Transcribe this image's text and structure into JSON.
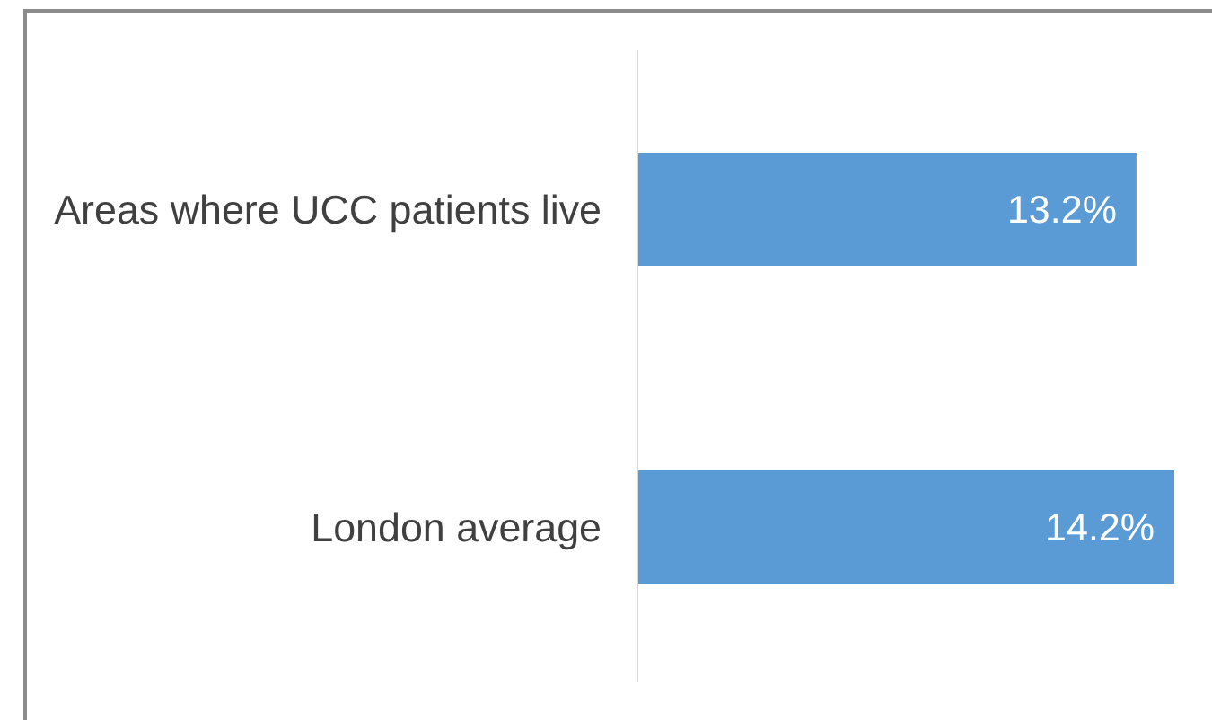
{
  "chart_data": {
    "type": "bar",
    "orientation": "horizontal",
    "categories": [
      "Areas where UCC patients live",
      "London average"
    ],
    "values": [
      13.2,
      14.2
    ],
    "value_labels": [
      "13.2%",
      "14.2%"
    ],
    "color": "#5b9bd5",
    "tick_labels": "y"
  }
}
